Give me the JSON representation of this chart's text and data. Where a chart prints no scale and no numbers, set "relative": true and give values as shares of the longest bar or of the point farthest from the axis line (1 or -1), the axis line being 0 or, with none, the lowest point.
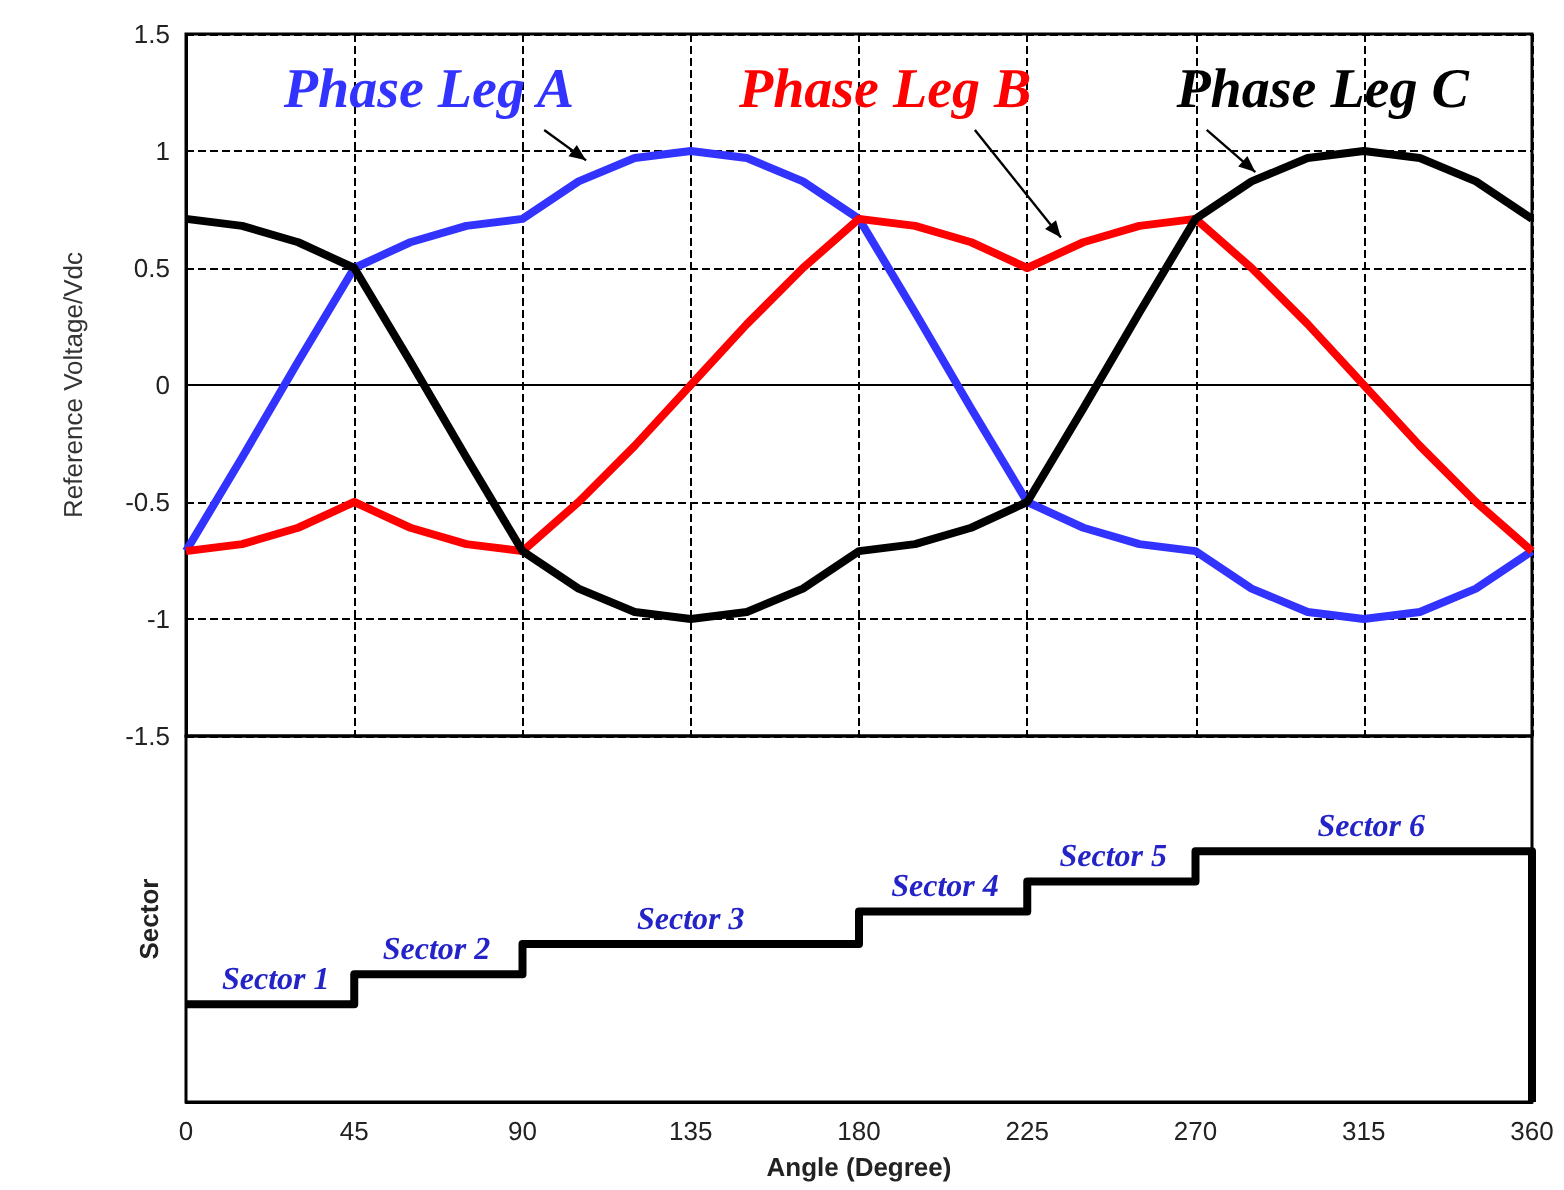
{
  "chart_data": [
    {
      "type": "line",
      "ylabel": "Reference Voltage/Vdc",
      "x": [
        0,
        15,
        30,
        45,
        60,
        75,
        90,
        105,
        120,
        135,
        150,
        165,
        180,
        195,
        210,
        225,
        240,
        255,
        270,
        285,
        300,
        315,
        330,
        345,
        360
      ],
      "series": [
        {
          "name": "Phase Leg A",
          "color": "#3333ff",
          "values": [
            -0.71,
            -0.31,
            0.1,
            0.5,
            0.61,
            0.68,
            0.71,
            0.87,
            0.97,
            1,
            0.97,
            0.87,
            0.71,
            0.31,
            -0.1,
            -0.5,
            -0.61,
            -0.68,
            -0.71,
            -0.87,
            -0.97,
            -1,
            -0.97,
            -0.87,
            -0.71
          ]
        },
        {
          "name": "Phase Leg B",
          "color": "#ff0000",
          "values": [
            -0.71,
            -0.68,
            -0.61,
            -0.5,
            -0.61,
            -0.68,
            -0.71,
            -0.5,
            -0.26,
            0,
            0.26,
            0.5,
            0.71,
            0.68,
            0.61,
            0.5,
            0.61,
            0.68,
            0.71,
            0.5,
            0.26,
            0,
            -0.26,
            -0.5,
            -0.71
          ]
        },
        {
          "name": "Phase Leg C",
          "color": "#000000",
          "values": [
            0.71,
            0.68,
            0.61,
            0.5,
            0.1,
            -0.31,
            -0.71,
            -0.87,
            -0.97,
            -1,
            -0.97,
            -0.87,
            -0.71,
            -0.68,
            -0.61,
            -0.5,
            -0.1,
            0.31,
            0.71,
            0.87,
            0.97,
            1,
            0.97,
            0.87,
            0.71
          ]
        }
      ],
      "xlim": [
        0,
        360
      ],
      "xticks": [
        0,
        45,
        90,
        135,
        180,
        225,
        270,
        315,
        360
      ],
      "ylim": [
        -1.5,
        1.5
      ],
      "yticks": [
        -1.5,
        -1,
        -0.5,
        0,
        0.5,
        1,
        1.5
      ],
      "grid": true,
      "tick_labels": "y"
    },
    {
      "type": "step",
      "xlabel": "Angle (Degree)",
      "ylabel": "Sector",
      "x": [
        0,
        45,
        90,
        180,
        225,
        270,
        360
      ],
      "values": [
        0.39,
        0.51,
        0.63,
        0.76,
        0.88,
        1,
        0
      ],
      "color": "#000000",
      "relative": true,
      "xlim": [
        0,
        360
      ],
      "xticks": [
        0,
        45,
        90,
        135,
        180,
        225,
        270,
        315,
        360
      ],
      "tick_labels": "x",
      "annotations": [
        {
          "text": "Sector 1",
          "x": 24,
          "y": 0.39
        },
        {
          "text": "Sector 2",
          "x": 67,
          "y": 0.51
        },
        {
          "text": "Sector 3",
          "x": 135,
          "y": 0.63
        },
        {
          "text": "Sector 4",
          "x": 203,
          "y": 0.76
        },
        {
          "text": "Sector 5",
          "x": 248,
          "y": 0.88
        },
        {
          "text": "Sector 6",
          "x": 317,
          "y": 1
        }
      ]
    }
  ]
}
